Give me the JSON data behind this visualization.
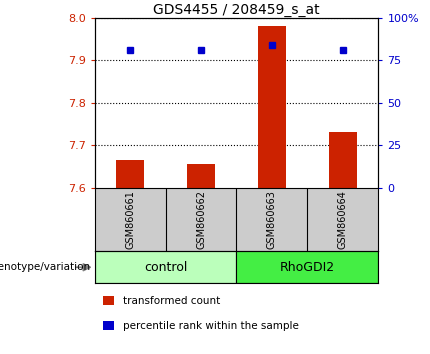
{
  "title": "GDS4455 / 208459_s_at",
  "samples": [
    "GSM860661",
    "GSM860662",
    "GSM860663",
    "GSM860664"
  ],
  "groups": [
    "control",
    "control",
    "RhoGDI2",
    "RhoGDI2"
  ],
  "bar_values": [
    7.665,
    7.655,
    7.98,
    7.73
  ],
  "bar_base": 7.6,
  "blue_values": [
    7.925,
    7.925,
    7.935,
    7.925
  ],
  "ylim_left": [
    7.6,
    8.0
  ],
  "ylim_right": [
    0,
    100
  ],
  "yticks_left": [
    7.6,
    7.7,
    7.8,
    7.9,
    8.0
  ],
  "yticks_right": [
    0,
    25,
    50,
    75,
    100
  ],
  "ytick_labels_right": [
    "0",
    "25",
    "50",
    "75",
    "100%"
  ],
  "bar_color": "#cc2200",
  "blue_color": "#0000cc",
  "left_tick_color": "#cc2200",
  "right_tick_color": "#0000cc",
  "legend_red": "transformed count",
  "legend_blue": "percentile rank within the sample",
  "genotype_label": "genotype/variation",
  "sample_area_color": "#cccccc",
  "group_color_control": "#bbffbb",
  "group_color_RhoGDI2": "#44ee44",
  "bar_width": 0.4
}
